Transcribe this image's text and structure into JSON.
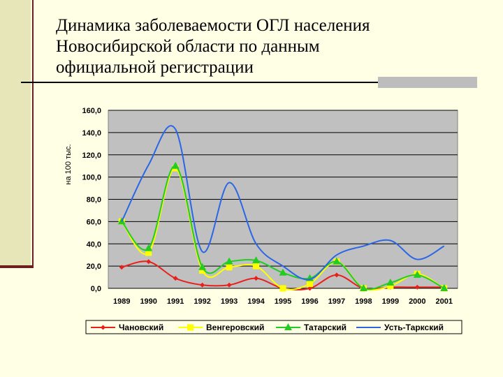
{
  "slide": {
    "title_lines": [
      "Динамика заболеваемости ОГЛ населения",
      "Новосибирской области по данным",
      "официальной регистрации"
    ]
  },
  "chart_data": {
    "type": "line",
    "ylabel": "на 100 тыс.",
    "ylim": [
      0,
      160
    ],
    "yticks": [
      "0,0",
      "20,0",
      "40,0",
      "60,0",
      "80,0",
      "100,0",
      "120,0",
      "140,0",
      "160,0"
    ],
    "categories": [
      "1989",
      "1990",
      "1991",
      "1992",
      "1993",
      "1994",
      "1995",
      "1996",
      "1997",
      "1998",
      "1999",
      "2000",
      "2001"
    ],
    "grid": true,
    "legend_position": "bottom",
    "series": [
      {
        "name": "Чановский",
        "color": "#e8201c",
        "marker": "diamond",
        "values": [
          19,
          24,
          9,
          3,
          3,
          9,
          0,
          0,
          12,
          0,
          1,
          1,
          1
        ]
      },
      {
        "name": "Венгеровский",
        "color": "#ffff00",
        "marker": "square",
        "values": [
          60,
          32,
          108,
          16,
          19,
          20,
          0,
          4,
          24,
          0,
          2,
          13,
          0
        ]
      },
      {
        "name": "Татарский",
        "color": "#22cc22",
        "marker": "triangle",
        "values": [
          60,
          36,
          110,
          19,
          24,
          25,
          14,
          9,
          24,
          0,
          5,
          12,
          0
        ]
      },
      {
        "name": "Усть-Таркский",
        "color": "#2a66e6",
        "marker": "none",
        "values": [
          60,
          111,
          143,
          33,
          95,
          40,
          20,
          8,
          30,
          38,
          43,
          26,
          38
        ]
      }
    ]
  }
}
